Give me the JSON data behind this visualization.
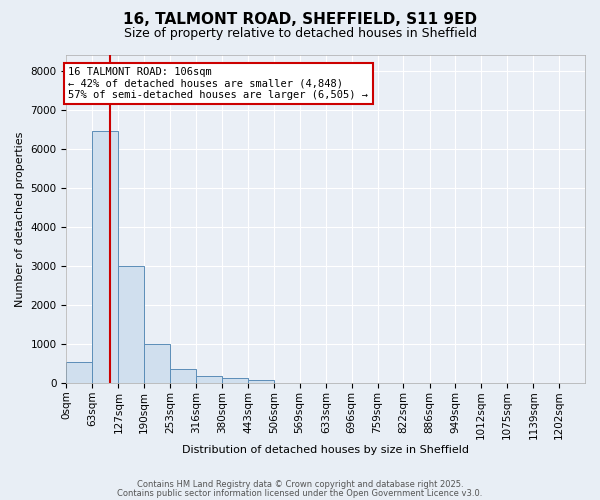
{
  "title": "16, TALMONT ROAD, SHEFFIELD, S11 9ED",
  "subtitle": "Size of property relative to detached houses in Sheffield",
  "xlabel": "Distribution of detached houses by size in Sheffield",
  "ylabel": "Number of detached properties",
  "bin_edges": [
    0,
    63,
    127,
    190,
    253,
    316,
    380,
    443,
    506,
    569,
    633,
    696,
    759,
    822,
    886,
    949,
    1012,
    1075,
    1139,
    1202,
    1265
  ],
  "bar_heights": [
    550,
    6450,
    3000,
    1000,
    350,
    175,
    125,
    80,
    10,
    5,
    2,
    2,
    1,
    1,
    0,
    0,
    0,
    0,
    0,
    0
  ],
  "bar_color": "#d0dfee",
  "bar_edge_color": "#5b8db8",
  "property_size": 106,
  "property_line_color": "#cc0000",
  "annotation_text": "16 TALMONT ROAD: 106sqm\n← 42% of detached houses are smaller (4,848)\n57% of semi-detached houses are larger (6,505) →",
  "annotation_box_color": "#ffffff",
  "annotation_box_edge_color": "#cc0000",
  "ylim": [
    0,
    8400
  ],
  "yticks": [
    0,
    1000,
    2000,
    3000,
    4000,
    5000,
    6000,
    7000,
    8000
  ],
  "bg_color": "#e8eef5",
  "plot_bg_color": "#eaeff6",
  "grid_color": "#ffffff",
  "footer_line1": "Contains HM Land Registry data © Crown copyright and database right 2025.",
  "footer_line2": "Contains public sector information licensed under the Open Government Licence v3.0.",
  "title_fontsize": 11,
  "subtitle_fontsize": 9,
  "ylabel_fontsize": 8,
  "xlabel_fontsize": 8,
  "tick_fontsize": 7.5,
  "annot_fontsize": 7.5
}
